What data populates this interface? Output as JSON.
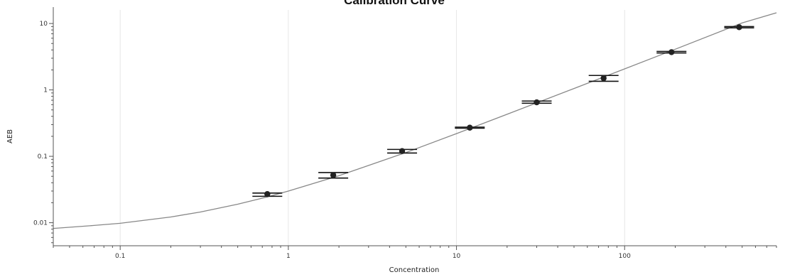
{
  "chart_data": {
    "type": "scatter",
    "title": "Calibration Curve",
    "xlabel": "Concentration",
    "ylabel": "AEB",
    "x_scale": "log",
    "y_scale": "log",
    "xlim": [
      0.04,
      800
    ],
    "ylim": [
      0.0045,
      16
    ],
    "x_ticks": [
      0.1,
      1,
      10,
      100
    ],
    "x_tick_labels": [
      "0.1",
      "1",
      "10",
      "100"
    ],
    "y_ticks": [
      0.01,
      0.1,
      1,
      10
    ],
    "y_tick_labels": [
      "0.01",
      "0.1",
      "1",
      "10"
    ],
    "grid": true,
    "legend": "none",
    "series": [
      {
        "type": "scatter",
        "marker_color": "#222222",
        "points": [
          {
            "x": 0.75,
            "y": 0.027,
            "y_err_low": 0.025,
            "y_err_high": 0.028
          },
          {
            "x": 1.85,
            "y": 0.052,
            "y_err_low": 0.047,
            "y_err_high": 0.057
          },
          {
            "x": 4.75,
            "y": 0.12,
            "y_err_low": 0.112,
            "y_err_high": 0.127
          },
          {
            "x": 12,
            "y": 0.27,
            "y_err_low": 0.265,
            "y_err_high": 0.275
          },
          {
            "x": 30,
            "y": 0.65,
            "y_err_low": 0.63,
            "y_err_high": 0.68
          },
          {
            "x": 75,
            "y": 1.5,
            "y_err_low": 1.35,
            "y_err_high": 1.65
          },
          {
            "x": 190,
            "y": 3.7,
            "y_err_low": 3.6,
            "y_err_high": 3.8
          },
          {
            "x": 480,
            "y": 8.8,
            "y_err_low": 8.6,
            "y_err_high": 9.0
          }
        ]
      },
      {
        "type": "line",
        "line_color": "#888888",
        "x": [
          0.04,
          0.07,
          0.1,
          0.2,
          0.3,
          0.5,
          0.75,
          1,
          2,
          5,
          10,
          20,
          50,
          100,
          200,
          500,
          800
        ],
        "y": [
          0.0082,
          0.0091,
          0.0098,
          0.0122,
          0.0145,
          0.019,
          0.0245,
          0.03,
          0.051,
          0.114,
          0.22,
          0.43,
          1.05,
          2.07,
          4.1,
          10.2,
          14.5
        ]
      }
    ]
  }
}
